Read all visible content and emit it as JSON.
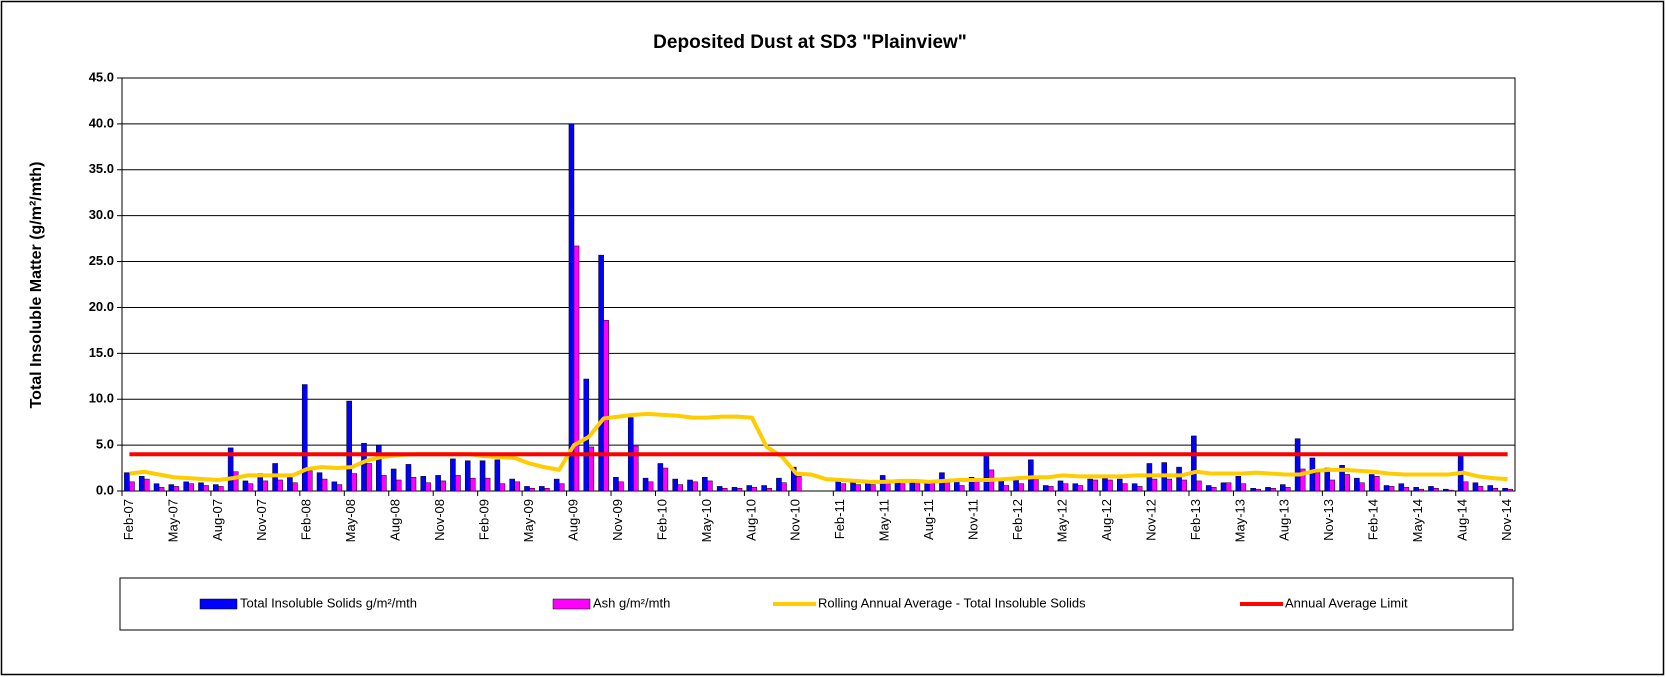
{
  "chart_data": {
    "type": "bar",
    "title": "Deposited Dust at SD3 \"Plainview\"",
    "y_label": "Total Insoluble Matter  (g/m²/mth)",
    "categories": [
      "Feb-07",
      null,
      null,
      "May-07",
      null,
      null,
      "Aug-07",
      null,
      null,
      "Nov-07",
      null,
      null,
      "Feb-08",
      null,
      null,
      "May-08",
      null,
      null,
      "Aug-08",
      null,
      null,
      "Nov-08",
      null,
      null,
      "Feb-09",
      null,
      null,
      "May-09",
      null,
      null,
      "Aug-09",
      null,
      null,
      "Nov-09",
      null,
      null,
      "Feb-10",
      null,
      null,
      "May-10",
      null,
      null,
      "Aug-10",
      null,
      null,
      "Nov-10",
      null,
      null,
      "Feb-11",
      null,
      null,
      "May-11",
      null,
      null,
      "Aug-11",
      null,
      null,
      "Nov-11",
      null,
      null,
      "Feb-12",
      null,
      null,
      "May-12",
      null,
      null,
      "Aug-12",
      null,
      null,
      "Nov-12",
      null,
      null,
      "Feb-13",
      null,
      null,
      "May-13",
      null,
      null,
      "Aug-13",
      null,
      null,
      "Nov-13",
      null,
      null,
      "Feb-14",
      null,
      null,
      "May-14",
      null,
      null,
      "Aug-14",
      null,
      null,
      "Nov-14"
    ],
    "series": [
      {
        "name": "Total Insoluble Solids  g/m²/mth",
        "type": "bar",
        "color": "#0000ff",
        "values": [
          2.0,
          1.6,
          0.8,
          0.7,
          1.0,
          0.9,
          0.7,
          4.7,
          1.1,
          1.9,
          3.0,
          1.5,
          11.6,
          2.0,
          1.0,
          9.8,
          5.2,
          5.0,
          2.4,
          2.9,
          1.6,
          1.7,
          3.5,
          3.3,
          3.3,
          3.4,
          1.3,
          0.5,
          0.5,
          1.3,
          40.0,
          12.2,
          25.7,
          1.5,
          8.0,
          1.4,
          3.0,
          1.3,
          1.2,
          1.5,
          0.5,
          0.4,
          0.6,
          0.6,
          1.4,
          2.6,
          null,
          null,
          1.0,
          0.9,
          0.9,
          1.7,
          1.0,
          0.9,
          0.9,
          2.0,
          1.1,
          1.5,
          3.9,
          1.3,
          1.4,
          3.4,
          0.6,
          1.1,
          0.8,
          1.3,
          1.4,
          1.3,
          0.8,
          3.0,
          3.1,
          2.6,
          6.0,
          0.6,
          0.9,
          1.6,
          0.3,
          0.4,
          0.7,
          5.7,
          3.6,
          2.5,
          2.8,
          1.4,
          1.8,
          0.6,
          0.8,
          0.4,
          0.5,
          0.2,
          4.1,
          0.9,
          0.6,
          0.3
        ]
      },
      {
        "name": "Ash  g/m²/mth",
        "type": "bar",
        "color": "#ff00ff",
        "values": [
          1.0,
          1.3,
          0.4,
          0.5,
          0.8,
          0.6,
          0.5,
          2.1,
          0.8,
          1.1,
          1.2,
          0.9,
          2.2,
          1.3,
          0.7,
          1.9,
          3.0,
          1.7,
          1.2,
          1.5,
          0.9,
          1.1,
          1.7,
          1.4,
          1.4,
          0.8,
          1.0,
          0.3,
          0.3,
          0.8,
          26.7,
          4.8,
          18.6,
          1.0,
          4.9,
          1.0,
          2.5,
          0.7,
          1.0,
          1.1,
          0.3,
          0.3,
          0.4,
          0.3,
          0.9,
          1.6,
          null,
          null,
          0.8,
          0.7,
          0.7,
          1.2,
          0.8,
          0.8,
          0.8,
          1.0,
          0.6,
          1.1,
          2.3,
          0.6,
          0.8,
          1.3,
          0.5,
          0.8,
          0.6,
          1.2,
          1.2,
          0.8,
          0.5,
          1.3,
          1.3,
          1.2,
          1.1,
          0.4,
          0.9,
          0.8,
          0.2,
          0.3,
          0.4,
          2.4,
          2.0,
          1.2,
          1.8,
          0.9,
          1.6,
          0.5,
          0.4,
          0.2,
          0.3,
          0.1,
          1.0,
          0.5,
          0.3,
          0.2
        ]
      },
      {
        "name": "Rolling Annual Average - Total Insoluble Solids",
        "type": "line",
        "color": "#ffcc00",
        "values": [
          1.9,
          2.1,
          1.8,
          1.5,
          1.4,
          1.3,
          1.2,
          1.4,
          1.7,
          1.7,
          1.7,
          1.7,
          2.4,
          2.6,
          2.5,
          2.6,
          3.3,
          3.7,
          3.9,
          4.0,
          4.0,
          4.0,
          4.0,
          4.0,
          3.8,
          3.7,
          3.6,
          3.0,
          2.6,
          2.3,
          5.0,
          5.9,
          7.9,
          8.1,
          8.3,
          8.4,
          8.3,
          8.2,
          8.0,
          8.0,
          8.1,
          8.1,
          8.0,
          4.8,
          3.8,
          1.9,
          1.8,
          1.3,
          1.2,
          1.1,
          1.0,
          1.0,
          1.1,
          1.1,
          1.0,
          1.1,
          1.2,
          1.2,
          1.2,
          1.3,
          1.4,
          1.5,
          1.5,
          1.7,
          1.6,
          1.6,
          1.6,
          1.6,
          1.7,
          1.7,
          1.7,
          1.7,
          2.1,
          1.9,
          1.9,
          1.9,
          2.0,
          1.9,
          1.8,
          1.8,
          2.2,
          2.3,
          2.3,
          2.2,
          2.1,
          1.9,
          1.8,
          1.8,
          1.8,
          1.8,
          2.0,
          1.6,
          1.4,
          1.3
        ]
      },
      {
        "name": "Annual Average Limit",
        "type": "line",
        "color": "#ff0000",
        "values": [
          4,
          4,
          4,
          4,
          4,
          4,
          4,
          4,
          4,
          4,
          4,
          4,
          4,
          4,
          4,
          4,
          4,
          4,
          4,
          4,
          4,
          4,
          4,
          4,
          4,
          4,
          4,
          4,
          4,
          4,
          4,
          4,
          4,
          4,
          4,
          4,
          4,
          4,
          4,
          4,
          4,
          4,
          4,
          4,
          4,
          4,
          4,
          4,
          4,
          4,
          4,
          4,
          4,
          4,
          4,
          4,
          4,
          4,
          4,
          4,
          4,
          4,
          4,
          4,
          4,
          4,
          4,
          4,
          4,
          4,
          4,
          4,
          4,
          4,
          4,
          4,
          4,
          4,
          4,
          4,
          4,
          4,
          4,
          4,
          4,
          4,
          4,
          4,
          4,
          4,
          4,
          4,
          4,
          4
        ]
      }
    ],
    "ylim": [
      0,
      45
    ],
    "yticks": [
      {
        "value": 0,
        "label": "0.0"
      },
      {
        "value": 5,
        "label": "5.0"
      },
      {
        "value": 10,
        "label": "10.0"
      },
      {
        "value": 15,
        "label": "15.0"
      },
      {
        "value": 20,
        "label": "20.0"
      },
      {
        "value": 25,
        "label": "25.0"
      },
      {
        "value": 30,
        "label": "30.0"
      },
      {
        "value": 35,
        "label": "35.0"
      },
      {
        "value": 40,
        "label": "40.0"
      },
      {
        "value": 45,
        "label": "45.0"
      }
    ],
    "grid": true,
    "legend": "bottom"
  }
}
